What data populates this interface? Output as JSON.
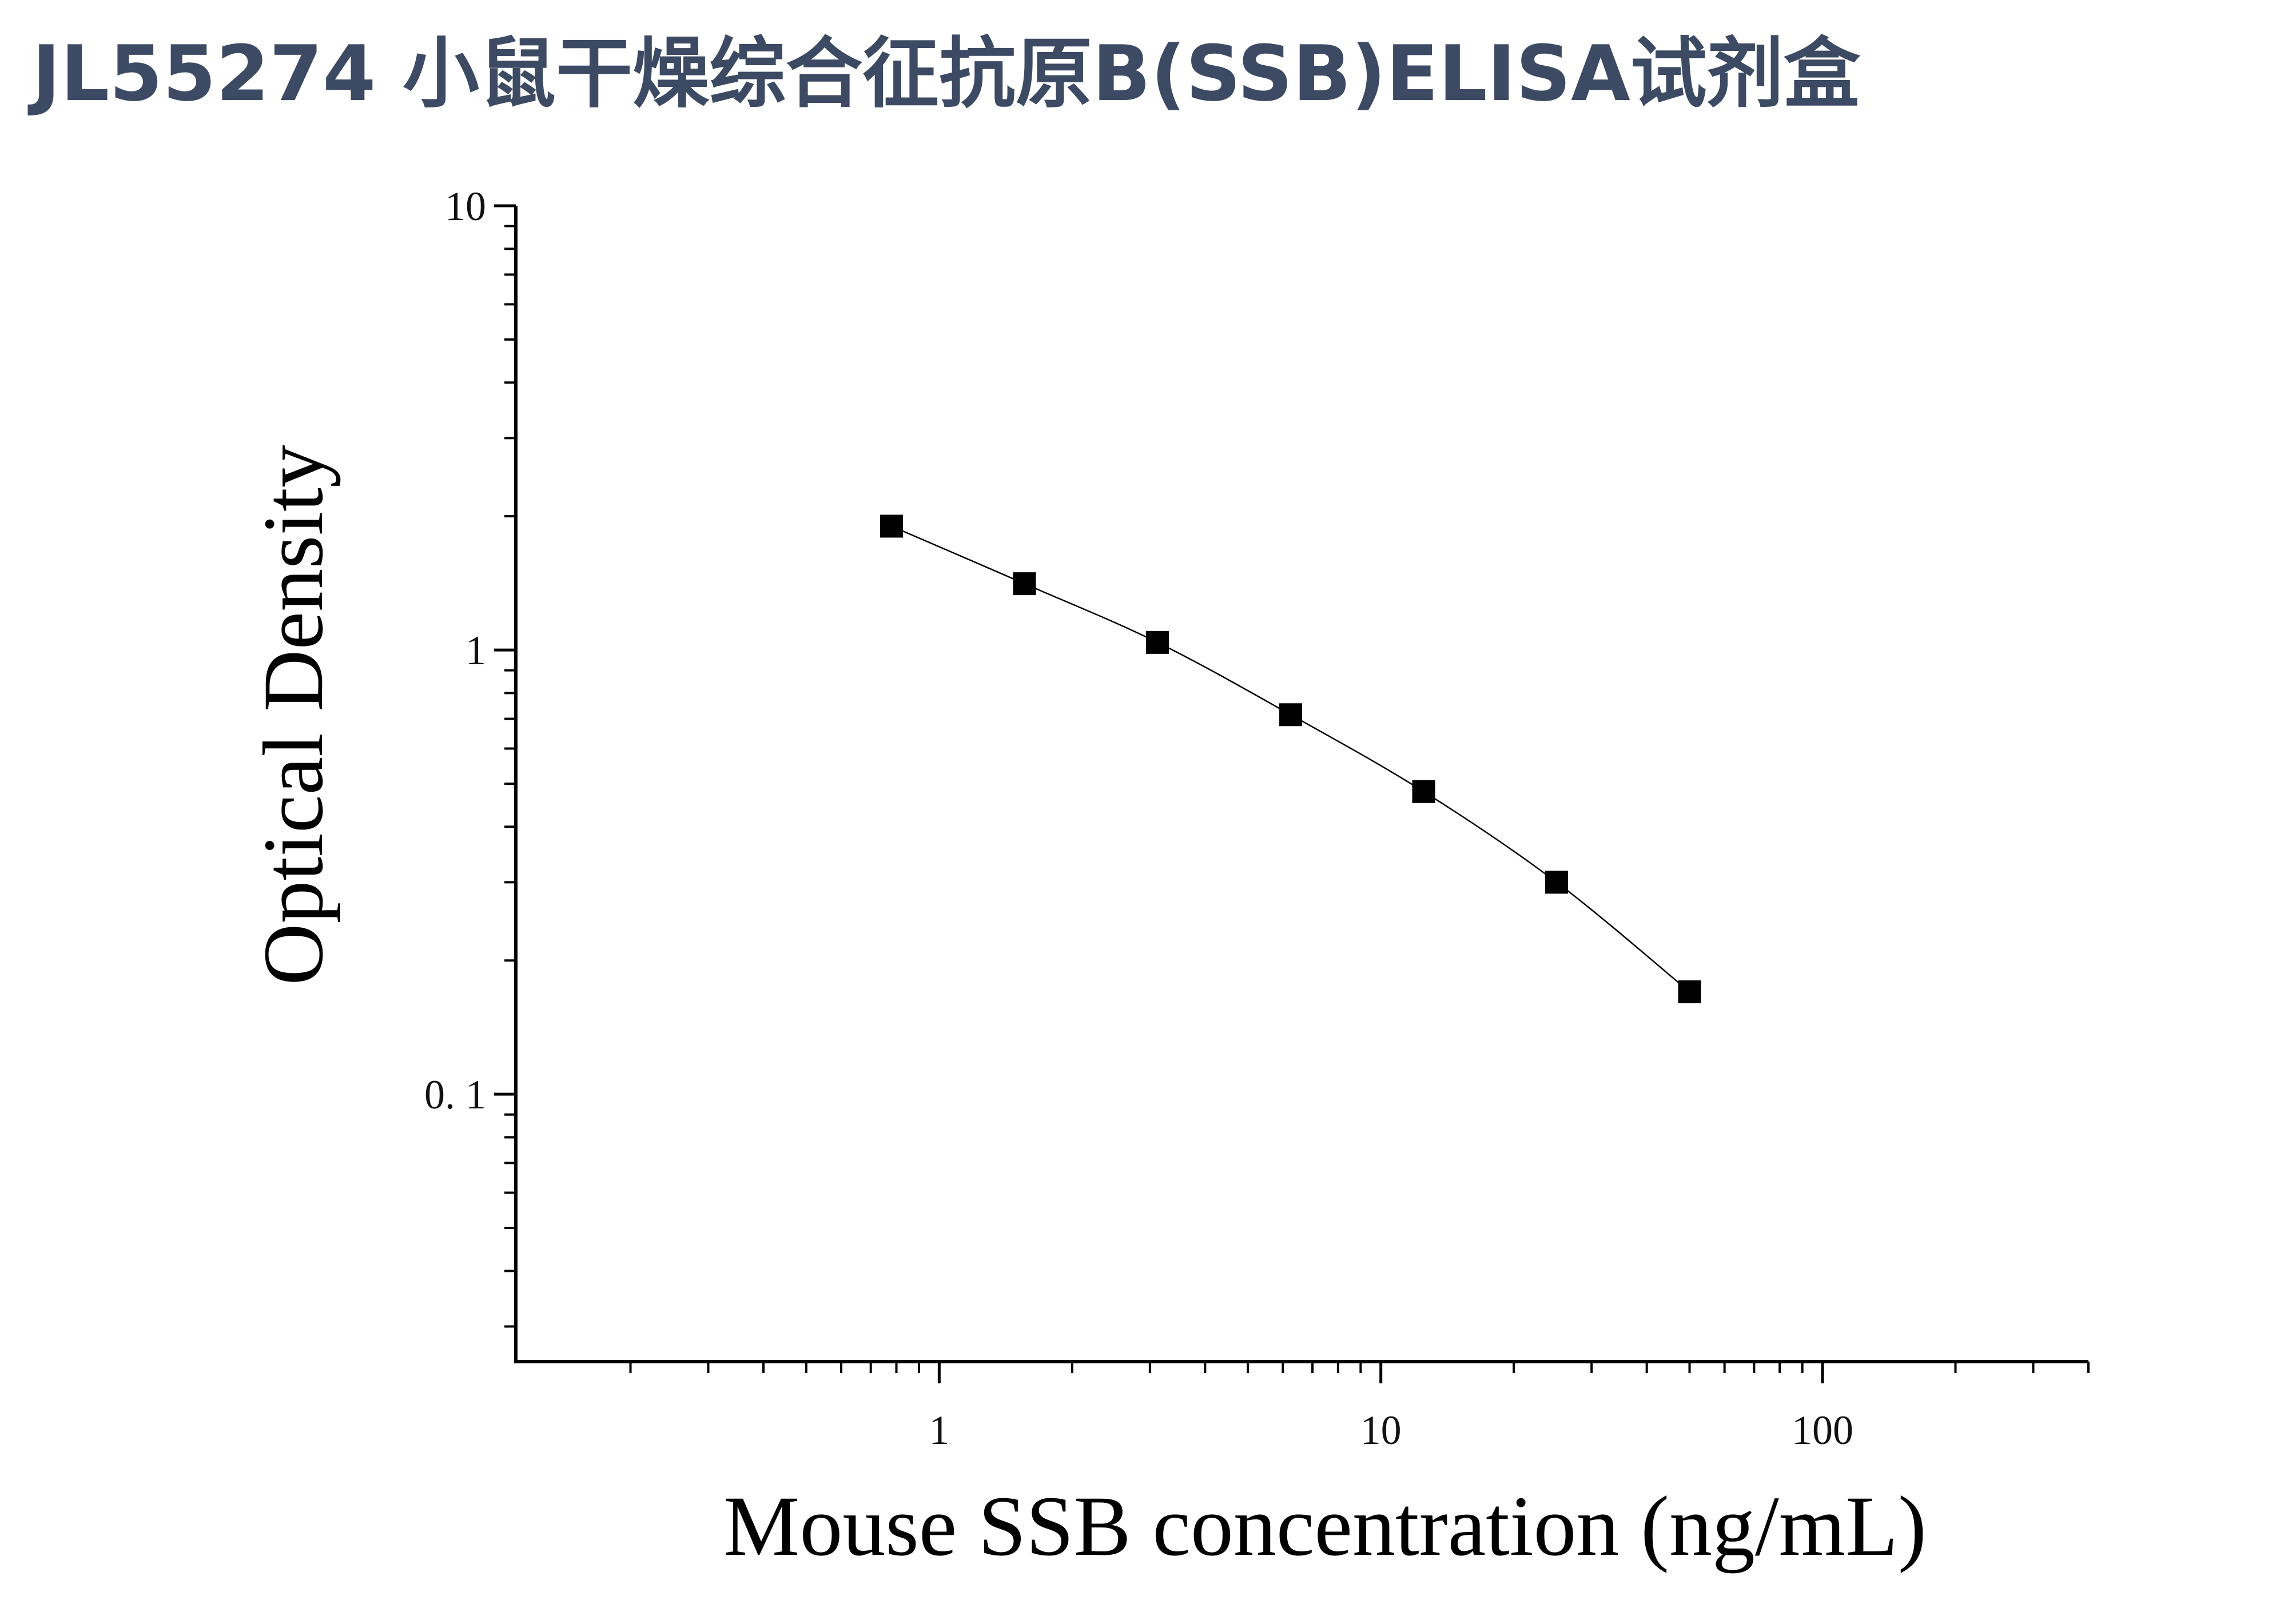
{
  "page_title": "JL55274 小鼠干燥综合征抗原B(SSB)ELISA试剂盒",
  "chart_data": {
    "type": "scatter",
    "title": "JL55274 小鼠干燥综合征抗原B(SSB)ELISA试剂盒",
    "xlabel": "Mouse SSB concentration (ng/mL)",
    "ylabel": "Optical Density",
    "x_scale": "log",
    "y_scale": "log",
    "xlim": [
      0.11,
      400
    ],
    "ylim": [
      0.025,
      10
    ],
    "x_ticks": [
      {
        "value": 1,
        "label": "1"
      },
      {
        "value": 10,
        "label": "10"
      },
      {
        "value": 100,
        "label": "100"
      }
    ],
    "y_ticks": [
      {
        "value": 0.1,
        "label": "0. 1"
      },
      {
        "value": 1,
        "label": "1"
      },
      {
        "value": 10,
        "label": "10"
      }
    ],
    "grid": false,
    "legend": "none",
    "marker": "square",
    "fit_line": true,
    "color": "#000000",
    "series": [
      {
        "x": [
          0.78,
          1.56,
          3.12,
          6.25,
          12.5,
          25,
          50
        ],
        "y": [
          1.9,
          1.41,
          1.04,
          0.715,
          0.48,
          0.3,
          0.17
        ]
      }
    ]
  }
}
